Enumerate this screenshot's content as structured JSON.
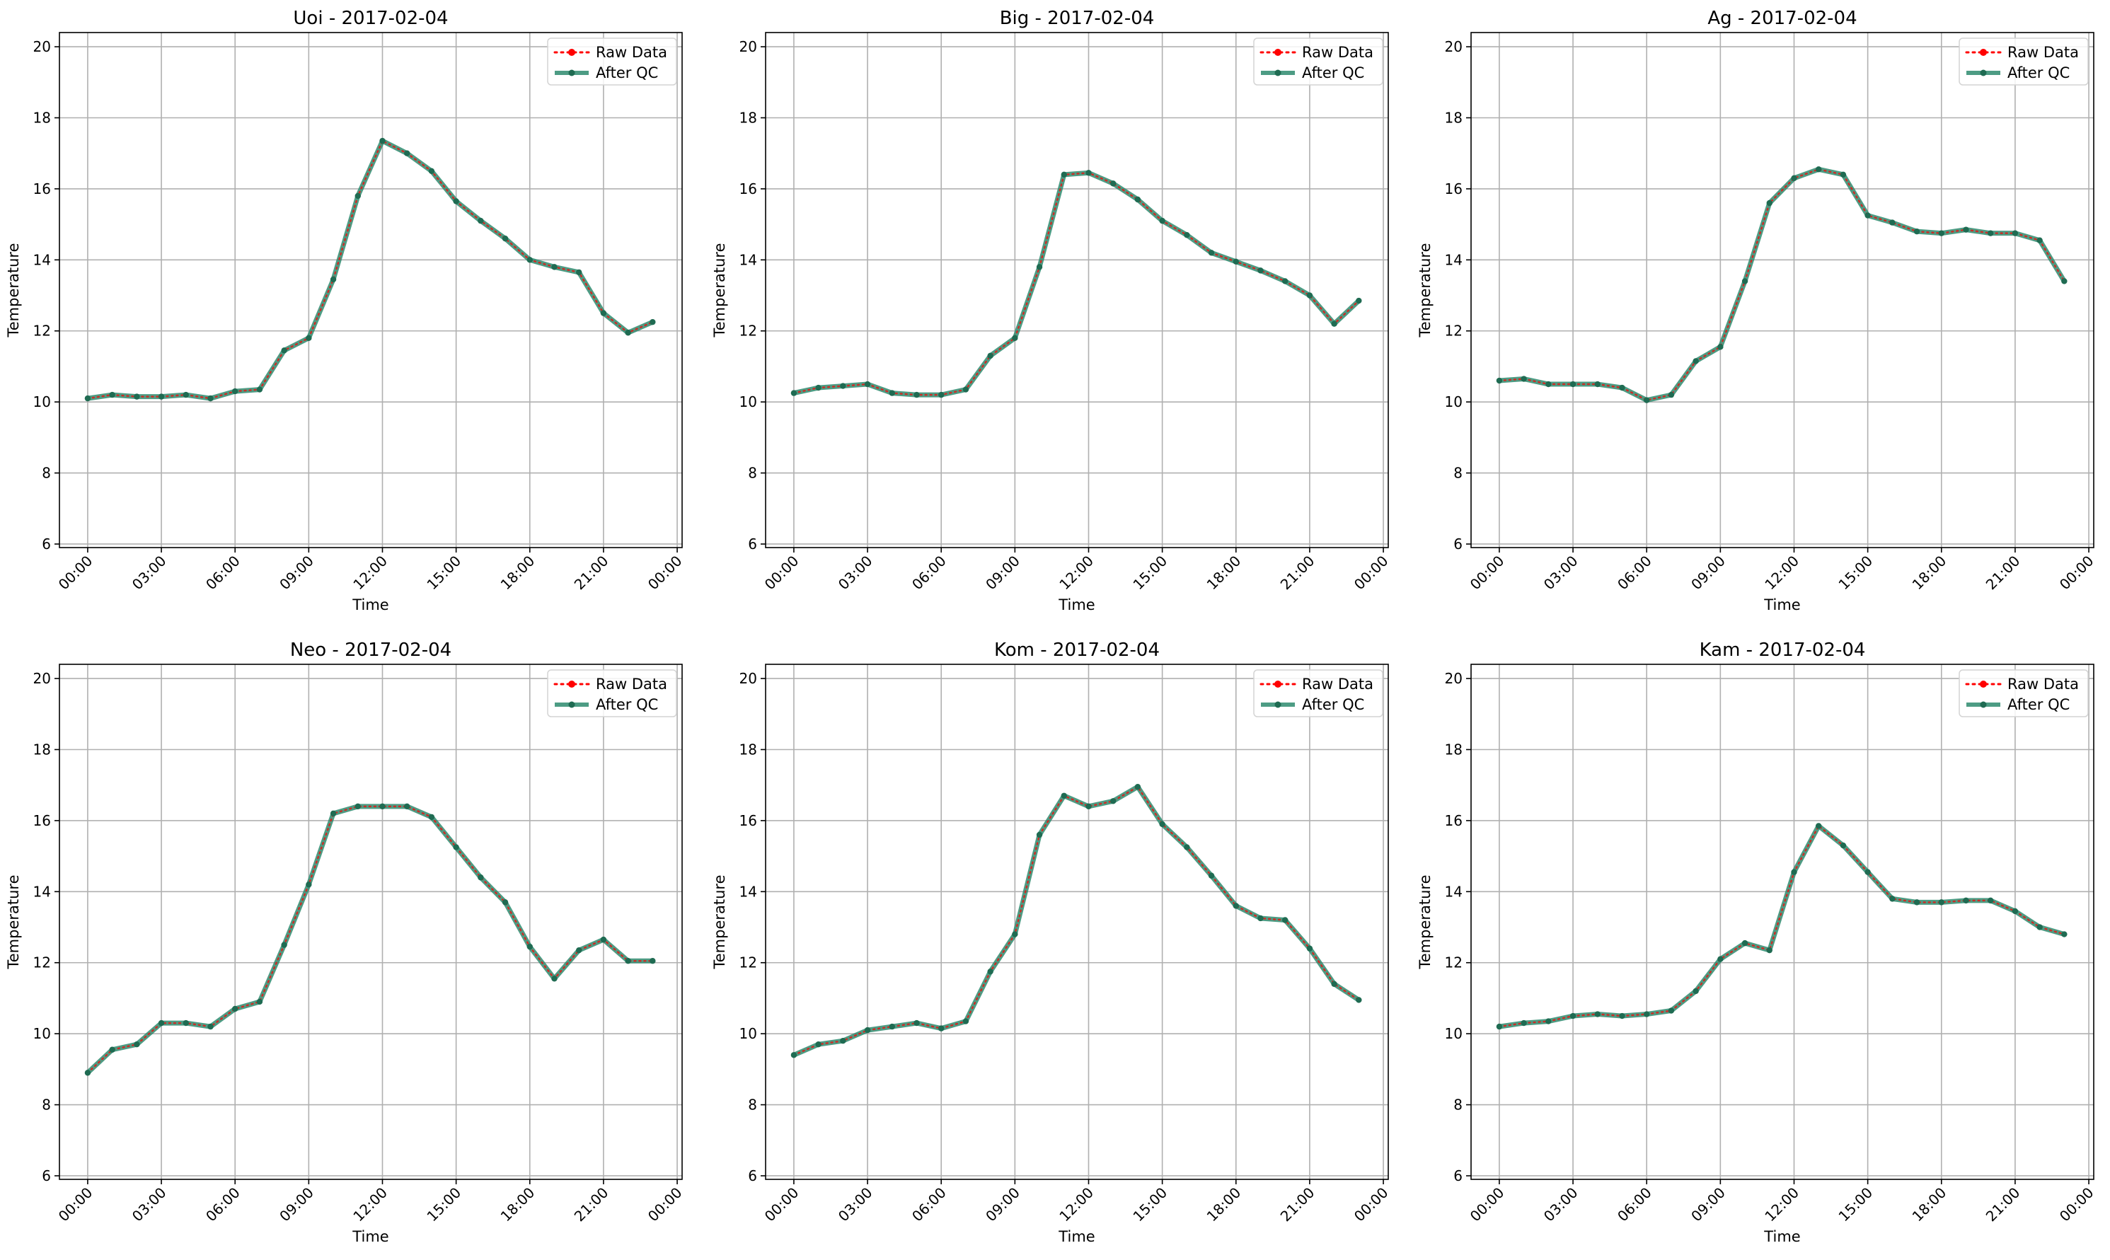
{
  "figure": {
    "legend_location": "top-right",
    "grid": true,
    "colors": {
      "raw": "#ff0000",
      "qc": "#2e8b6e",
      "qc_marker": "#1f6b52",
      "grid": "#b0b0b0",
      "axes": "#000000"
    }
  },
  "chart_data": [
    {
      "type": "line",
      "title": "Uoi - 2017-02-04",
      "xlabel": "Time",
      "ylabel": "Temperature",
      "ylim": [
        5.9,
        20.4
      ],
      "yticks": [
        "6",
        "8",
        "10",
        "12",
        "14",
        "16",
        "18",
        "20"
      ],
      "xticks": [
        "00:00",
        "03:00",
        "06:00",
        "09:00",
        "12:00",
        "15:00",
        "18:00",
        "21:00",
        "00:00"
      ],
      "x": [
        "00:00",
        "01:00",
        "02:00",
        "03:00",
        "04:00",
        "05:00",
        "06:00",
        "07:00",
        "08:00",
        "09:00",
        "10:00",
        "11:00",
        "12:00",
        "13:00",
        "14:00",
        "15:00",
        "16:00",
        "17:00",
        "18:00",
        "19:00",
        "20:00",
        "21:00",
        "22:00",
        "23:00"
      ],
      "series": [
        {
          "name": "Raw Data",
          "values": [
            10.1,
            10.2,
            10.15,
            10.15,
            10.2,
            10.1,
            10.3,
            10.35,
            11.45,
            11.8,
            13.45,
            15.8,
            17.35,
            17.0,
            16.5,
            15.65,
            15.1,
            14.6,
            14.0,
            13.8,
            13.65,
            12.5,
            11.95,
            12.25
          ]
        },
        {
          "name": "After QC",
          "values": [
            10.1,
            10.2,
            10.15,
            10.15,
            10.2,
            10.1,
            10.3,
            10.35,
            11.45,
            11.8,
            13.45,
            15.8,
            17.35,
            17.0,
            16.5,
            15.65,
            15.1,
            14.6,
            14.0,
            13.8,
            13.65,
            12.5,
            11.95,
            12.25
          ]
        }
      ]
    },
    {
      "type": "line",
      "title": "Big - 2017-02-04",
      "xlabel": "Time",
      "ylabel": "Temperature",
      "ylim": [
        5.9,
        20.4
      ],
      "yticks": [
        "6",
        "8",
        "10",
        "12",
        "14",
        "16",
        "18",
        "20"
      ],
      "xticks": [
        "00:00",
        "03:00",
        "06:00",
        "09:00",
        "12:00",
        "15:00",
        "18:00",
        "21:00",
        "00:00"
      ],
      "x": [
        "00:00",
        "01:00",
        "02:00",
        "03:00",
        "04:00",
        "05:00",
        "06:00",
        "07:00",
        "08:00",
        "09:00",
        "10:00",
        "11:00",
        "12:00",
        "13:00",
        "14:00",
        "15:00",
        "16:00",
        "17:00",
        "18:00",
        "19:00",
        "20:00",
        "21:00",
        "22:00",
        "23:00"
      ],
      "series": [
        {
          "name": "Raw Data",
          "values": [
            10.25,
            10.4,
            10.45,
            10.5,
            10.25,
            10.2,
            10.2,
            10.35,
            11.3,
            11.8,
            13.8,
            16.4,
            16.45,
            16.15,
            15.7,
            15.1,
            14.7,
            14.2,
            13.95,
            13.7,
            13.4,
            13.0,
            12.2,
            12.85
          ]
        },
        {
          "name": "After QC",
          "values": [
            10.25,
            10.4,
            10.45,
            10.5,
            10.25,
            10.2,
            10.2,
            10.35,
            11.3,
            11.8,
            13.8,
            16.4,
            16.45,
            16.15,
            15.7,
            15.1,
            14.7,
            14.2,
            13.95,
            13.7,
            13.4,
            13.0,
            12.2,
            12.85
          ]
        }
      ]
    },
    {
      "type": "line",
      "title": "Ag - 2017-02-04",
      "xlabel": "Time",
      "ylabel": "Temperature",
      "ylim": [
        5.9,
        20.4
      ],
      "yticks": [
        "6",
        "8",
        "10",
        "12",
        "14",
        "16",
        "18",
        "20"
      ],
      "xticks": [
        "00:00",
        "03:00",
        "06:00",
        "09:00",
        "12:00",
        "15:00",
        "18:00",
        "21:00",
        "00:00"
      ],
      "x": [
        "00:00",
        "01:00",
        "02:00",
        "03:00",
        "04:00",
        "05:00",
        "06:00",
        "07:00",
        "08:00",
        "09:00",
        "10:00",
        "11:00",
        "12:00",
        "13:00",
        "14:00",
        "15:00",
        "16:00",
        "17:00",
        "18:00",
        "19:00",
        "20:00",
        "21:00",
        "22:00",
        "23:00"
      ],
      "series": [
        {
          "name": "Raw Data",
          "values": [
            10.6,
            10.65,
            10.5,
            10.5,
            10.5,
            10.4,
            10.05,
            10.2,
            11.15,
            11.55,
            13.4,
            15.6,
            16.3,
            16.55,
            16.4,
            15.25,
            15.05,
            14.8,
            14.75,
            14.85,
            14.75,
            14.75,
            14.55,
            13.4
          ]
        },
        {
          "name": "After QC",
          "values": [
            10.6,
            10.65,
            10.5,
            10.5,
            10.5,
            10.4,
            10.05,
            10.2,
            11.15,
            11.55,
            13.4,
            15.6,
            16.3,
            16.55,
            16.4,
            15.25,
            15.05,
            14.8,
            14.75,
            14.85,
            14.75,
            14.75,
            14.55,
            13.4
          ]
        }
      ]
    },
    {
      "type": "line",
      "title": "Neo - 2017-02-04",
      "xlabel": "Time",
      "ylabel": "Temperature",
      "ylim": [
        5.9,
        20.4
      ],
      "yticks": [
        "6",
        "8",
        "10",
        "12",
        "14",
        "16",
        "18",
        "20"
      ],
      "xticks": [
        "00:00",
        "03:00",
        "06:00",
        "09:00",
        "12:00",
        "15:00",
        "18:00",
        "21:00",
        "00:00"
      ],
      "x": [
        "00:00",
        "01:00",
        "02:00",
        "03:00",
        "04:00",
        "05:00",
        "06:00",
        "07:00",
        "08:00",
        "09:00",
        "10:00",
        "11:00",
        "12:00",
        "13:00",
        "14:00",
        "15:00",
        "16:00",
        "17:00",
        "18:00",
        "19:00",
        "20:00",
        "21:00",
        "22:00",
        "23:00"
      ],
      "series": [
        {
          "name": "Raw Data",
          "values": [
            8.9,
            9.55,
            9.7,
            10.3,
            10.3,
            10.2,
            10.7,
            10.9,
            12.5,
            14.2,
            16.2,
            16.4,
            16.4,
            16.4,
            16.1,
            15.25,
            14.4,
            13.7,
            12.45,
            11.55,
            12.35,
            12.65,
            12.05,
            12.05
          ]
        },
        {
          "name": "After QC",
          "values": [
            8.9,
            9.55,
            9.7,
            10.3,
            10.3,
            10.2,
            10.7,
            10.9,
            12.5,
            14.2,
            16.2,
            16.4,
            16.4,
            16.4,
            16.1,
            15.25,
            14.4,
            13.7,
            12.45,
            11.55,
            12.35,
            12.65,
            12.05,
            12.05
          ]
        }
      ]
    },
    {
      "type": "line",
      "title": "Kom - 2017-02-04",
      "xlabel": "Time",
      "ylabel": "Temperature",
      "ylim": [
        5.9,
        20.4
      ],
      "yticks": [
        "6",
        "8",
        "10",
        "12",
        "14",
        "16",
        "18",
        "20"
      ],
      "xticks": [
        "00:00",
        "03:00",
        "06:00",
        "09:00",
        "12:00",
        "15:00",
        "18:00",
        "21:00",
        "00:00"
      ],
      "x": [
        "00:00",
        "01:00",
        "02:00",
        "03:00",
        "04:00",
        "05:00",
        "06:00",
        "07:00",
        "08:00",
        "09:00",
        "10:00",
        "11:00",
        "12:00",
        "13:00",
        "14:00",
        "15:00",
        "16:00",
        "17:00",
        "18:00",
        "19:00",
        "20:00",
        "21:00",
        "22:00",
        "23:00"
      ],
      "series": [
        {
          "name": "Raw Data",
          "values": [
            9.4,
            9.7,
            9.8,
            10.1,
            10.2,
            10.3,
            10.15,
            10.35,
            11.75,
            12.8,
            15.6,
            16.7,
            16.4,
            16.55,
            16.95,
            15.9,
            15.25,
            14.45,
            13.6,
            13.25,
            13.2,
            12.4,
            11.4,
            10.95
          ]
        },
        {
          "name": "After QC",
          "values": [
            9.4,
            9.7,
            9.8,
            10.1,
            10.2,
            10.3,
            10.15,
            10.35,
            11.75,
            12.8,
            15.6,
            16.7,
            16.4,
            16.55,
            16.95,
            15.9,
            15.25,
            14.45,
            13.6,
            13.25,
            13.2,
            12.4,
            11.4,
            10.95
          ]
        }
      ]
    },
    {
      "type": "line",
      "title": "Kam - 2017-02-04",
      "xlabel": "Time",
      "ylabel": "Temperature",
      "ylim": [
        5.9,
        20.4
      ],
      "yticks": [
        "6",
        "8",
        "10",
        "12",
        "14",
        "16",
        "18",
        "20"
      ],
      "xticks": [
        "00:00",
        "03:00",
        "06:00",
        "09:00",
        "12:00",
        "15:00",
        "18:00",
        "21:00",
        "00:00"
      ],
      "x": [
        "00:00",
        "01:00",
        "02:00",
        "03:00",
        "04:00",
        "05:00",
        "06:00",
        "07:00",
        "08:00",
        "09:00",
        "10:00",
        "11:00",
        "12:00",
        "13:00",
        "14:00",
        "15:00",
        "16:00",
        "17:00",
        "18:00",
        "19:00",
        "20:00",
        "21:00",
        "22:00",
        "23:00"
      ],
      "series": [
        {
          "name": "Raw Data",
          "values": [
            10.2,
            10.3,
            10.35,
            10.5,
            10.55,
            10.5,
            10.55,
            10.65,
            11.2,
            12.1,
            12.55,
            12.35,
            14.55,
            15.85,
            15.3,
            14.55,
            13.8,
            13.7,
            13.7,
            13.75,
            13.75,
            13.45,
            13.0,
            12.8
          ]
        },
        {
          "name": "After QC",
          "values": [
            10.2,
            10.3,
            10.35,
            10.5,
            10.55,
            10.5,
            10.55,
            10.65,
            11.2,
            12.1,
            12.55,
            12.35,
            14.55,
            15.85,
            15.3,
            14.55,
            13.8,
            13.7,
            13.7,
            13.75,
            13.75,
            13.45,
            13.0,
            12.8
          ]
        }
      ]
    }
  ]
}
